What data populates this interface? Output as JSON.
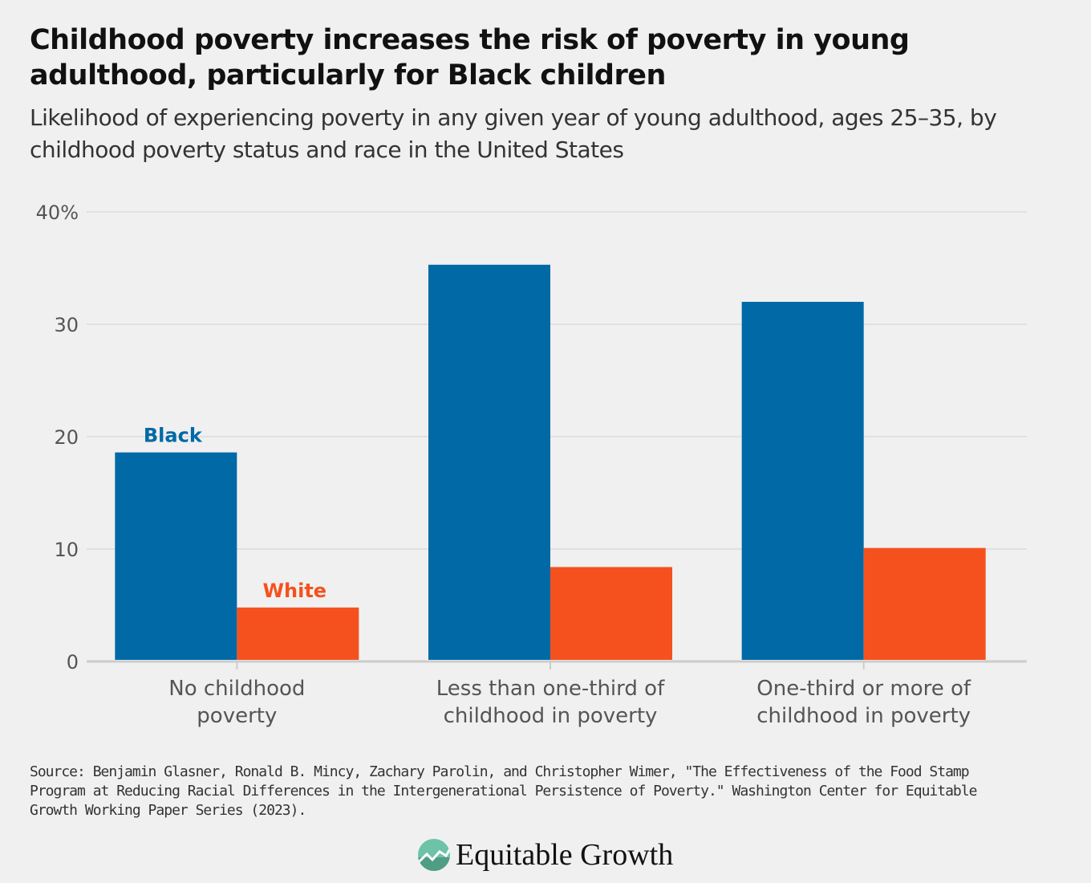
{
  "title": "Childhood poverty increases the risk of poverty in young adulthood, particularly for Black children",
  "subtitle": "Likelihood of experiencing poverty in any given year of young adulthood, ages 25–35, by childhood poverty status and race in the United States",
  "source": "Source: Benjamin Glasner, Ronald B. Mincy, Zachary Parolin, and Christopher Wimer, \"The Effectiveness of the Food Stamp Program at Reducing Racial Differences in the Intergenerational Persistence of Poverty.\" Washington Center for Equitable Growth Working Paper Series (2023).",
  "logo": {
    "text": "Equitable Growth",
    "icon": "rising-line-circle-icon"
  },
  "chart_data": {
    "type": "bar",
    "categories": [
      [
        "No childhood",
        "poverty"
      ],
      [
        "Less than one-third of",
        "childhood in poverty"
      ],
      [
        "One-third or more of",
        "childhood in poverty"
      ]
    ],
    "series": [
      {
        "name": "Black",
        "color": "#0069a6",
        "values": [
          18.6,
          35.3,
          32.0
        ]
      },
      {
        "name": "White",
        "color": "#f5511e",
        "values": [
          4.8,
          8.4,
          10.1
        ]
      }
    ],
    "ylim": [
      0,
      40
    ],
    "yticks": [
      0,
      10,
      20,
      30,
      40
    ],
    "ytick_labels": [
      "0",
      "10",
      "20",
      "30",
      "40%"
    ],
    "grid": true,
    "legend": "direct labels above first group"
  }
}
